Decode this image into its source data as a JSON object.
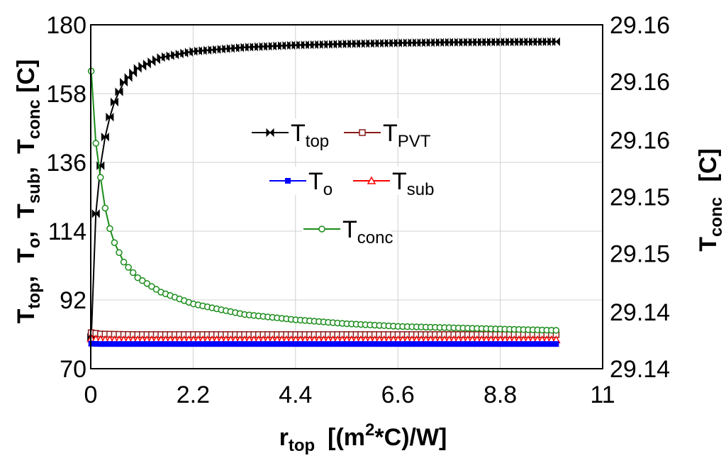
{
  "chart_data": {
    "type": "line",
    "x_axis": {
      "label_main": "r",
      "label_sub": "top",
      "label_units_pre": "[(m",
      "label_units_sup": "2",
      "label_units_post": "*C)/W]",
      "range": [
        0,
        11
      ],
      "ticks": [
        "0",
        "2.2",
        "4.4",
        "6.6",
        "8.8",
        "11"
      ],
      "tick_values": [
        0,
        2.2,
        4.4,
        6.6,
        8.8,
        11
      ]
    },
    "y_axis_left": {
      "label_parts": [
        {
          "main": "T",
          "sub": "top",
          "sep": ","
        },
        {
          "main": "T",
          "sub": "o",
          "sep": ","
        },
        {
          "main": "T",
          "sub": "sub",
          "sep": ","
        },
        {
          "main": "T",
          "sub": "conc",
          "sep": " [C]"
        }
      ],
      "range": [
        70,
        180
      ],
      "ticks": [
        "70",
        "92",
        "114",
        "136",
        "158",
        "180"
      ],
      "tick_values": [
        70,
        92,
        114,
        136,
        158,
        180
      ]
    },
    "y_axis_right": {
      "label_main": "T",
      "label_sub": "conc",
      "label_units": " [C]",
      "range": [
        29.138,
        29.164
      ],
      "ticks": [
        "29.14",
        "29.14",
        "29.15",
        "29.15",
        "29.16",
        "29.16",
        "29.16"
      ],
      "tick_values": [
        29.138,
        29.1423,
        29.1467,
        29.151,
        29.1553,
        29.1597,
        29.164
      ]
    },
    "grid": true,
    "series": [
      {
        "name": "T_top",
        "label_main": "T",
        "label_sub": "top",
        "color": "#000000",
        "marker": "bowtie",
        "axis": "left",
        "x": [
          0.01,
          0.1,
          0.2,
          0.3,
          0.4,
          0.5,
          0.7,
          1.0,
          1.5,
          2.2,
          3.3,
          4.4,
          5.5,
          6.6,
          7.7,
          8.8,
          10.0
        ],
        "y": [
          80,
          118,
          134,
          143.5,
          150,
          155,
          161.5,
          166,
          169.5,
          171.5,
          172.8,
          173.5,
          173.9,
          174.2,
          174.4,
          174.5,
          174.6
        ]
      },
      {
        "name": "T_PVT",
        "label_main": "T",
        "label_sub": "PVT",
        "color": "#8b1a1a",
        "marker": "open-square",
        "axis": "left",
        "x": [
          0.01,
          0.2,
          0.5,
          1.0,
          2.2,
          4.4,
          6.6,
          8.8,
          10.0
        ],
        "y": [
          81.5,
          81.1,
          81.0,
          80.9,
          80.9,
          80.9,
          80.9,
          80.9,
          80.9
        ]
      },
      {
        "name": "T_sub",
        "label_main": "T",
        "label_sub": "sub",
        "color": "#ff0000",
        "marker": "open-triangle",
        "axis": "left",
        "x": [
          0.01,
          0.2,
          0.5,
          1.0,
          2.2,
          4.4,
          6.6,
          8.8,
          10.0
        ],
        "y": [
          79.6,
          79.3,
          79.2,
          79.2,
          79.2,
          79.2,
          79.2,
          79.2,
          79.2
        ]
      },
      {
        "name": "T_o",
        "label_main": "T",
        "label_sub": "o",
        "color": "#0000ff",
        "marker": "filled-square",
        "axis": "left",
        "x": [
          0.01,
          0.2,
          0.5,
          1.0,
          2.2,
          4.4,
          6.6,
          8.8,
          10.0
        ],
        "y": [
          78.0,
          77.9,
          77.9,
          77.9,
          77.9,
          77.9,
          77.9,
          77.9,
          77.9
        ]
      },
      {
        "name": "T_conc",
        "label_main": "T",
        "label_sub": "conc",
        "color": "#1a8c1a",
        "marker": "open-circle",
        "axis": "right",
        "x": [
          0.01,
          0.1,
          0.2,
          0.3,
          0.4,
          0.5,
          0.7,
          1.0,
          1.5,
          2.2,
          3.3,
          4.4,
          5.5,
          6.6,
          7.7,
          8.8,
          10.0
        ],
        "y": [
          29.1605,
          29.1553,
          29.1527,
          29.1503,
          29.1487,
          29.1476,
          29.1461,
          29.1449,
          29.1438,
          29.1429,
          29.1421,
          29.1417,
          29.1414,
          29.1412,
          29.1411,
          29.141,
          29.1409
        ]
      }
    ],
    "legend": {
      "placement": "center",
      "rows": [
        [
          "T_top",
          "T_PVT"
        ],
        [
          "T_o",
          "T_sub"
        ],
        [
          "T_conc"
        ]
      ]
    }
  }
}
